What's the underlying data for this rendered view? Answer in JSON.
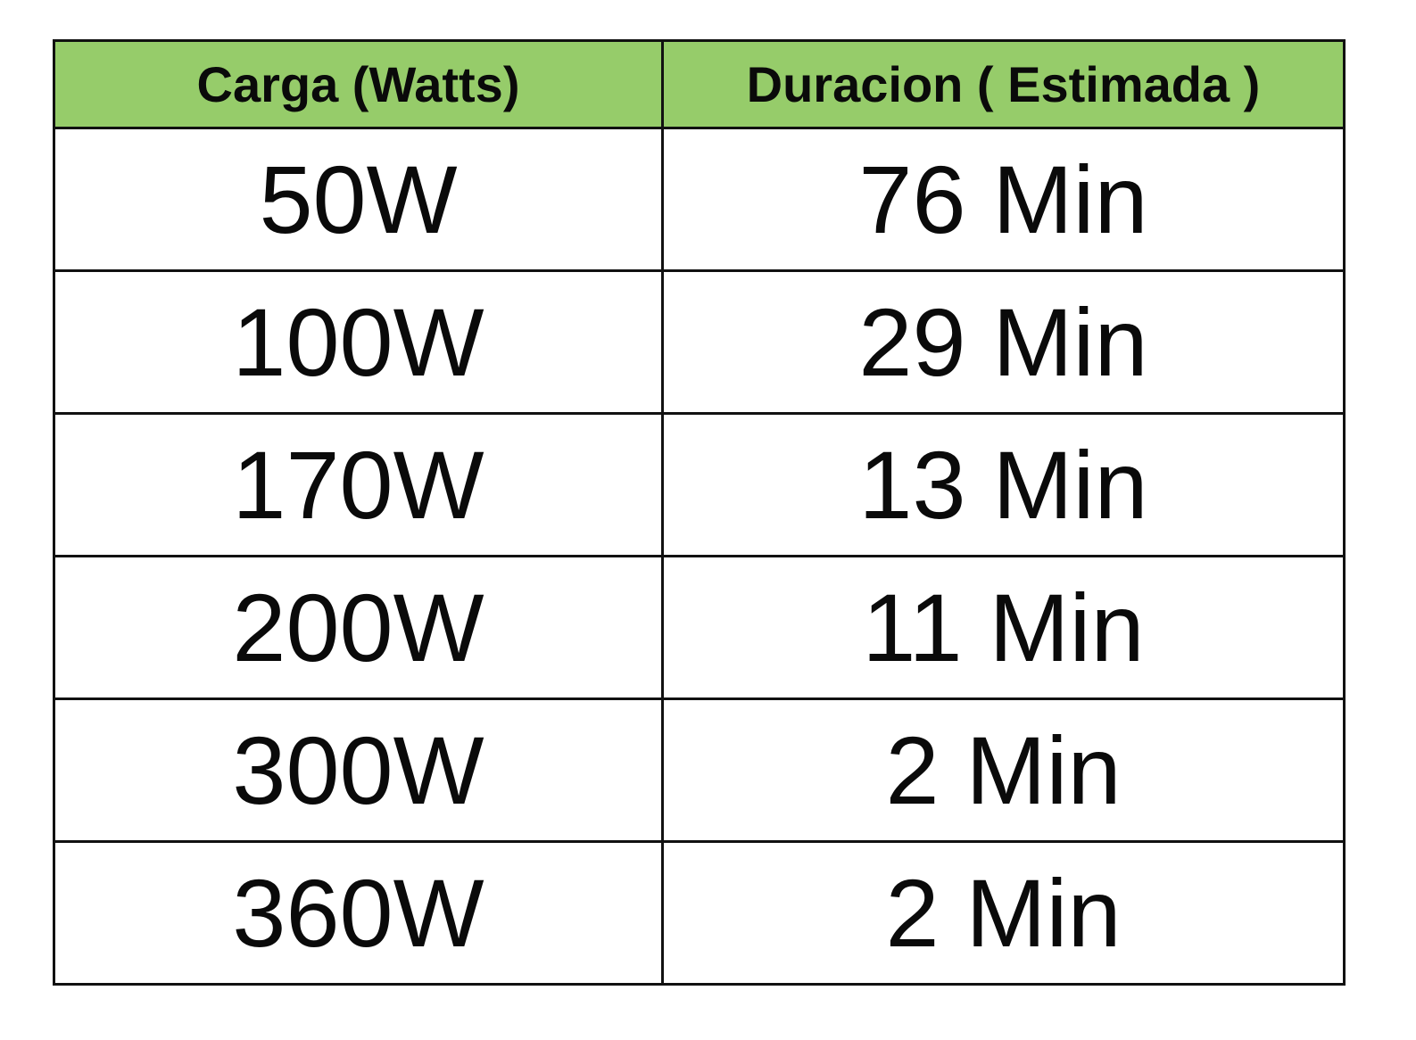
{
  "table": {
    "header_color": "#96cc6a",
    "columns": [
      "Carga (Watts)",
      "Duracion ( Estimada )"
    ],
    "rows": [
      [
        "50W",
        "76 Min"
      ],
      [
        "100W",
        "29 Min"
      ],
      [
        "170W",
        "13 Min"
      ],
      [
        "200W",
        "11 Min"
      ],
      [
        "300W",
        "2 Min"
      ],
      [
        "360W",
        "2 Min"
      ]
    ]
  }
}
